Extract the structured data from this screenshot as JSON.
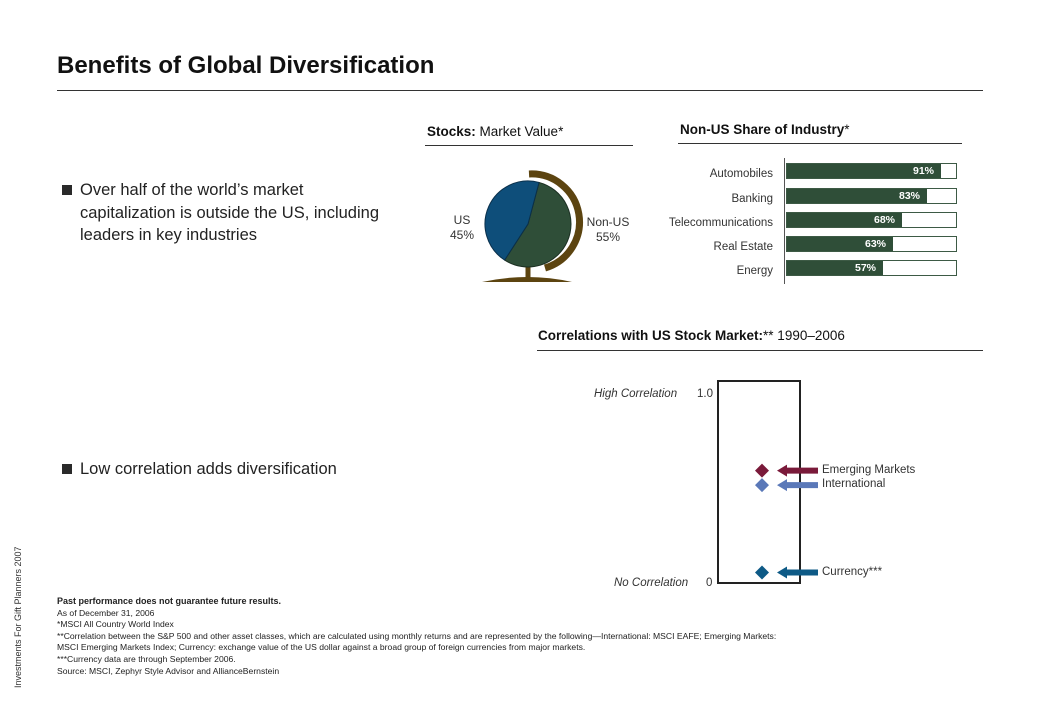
{
  "page": {
    "title": "Benefits of Global Diversification",
    "side_text": "Investments For Gift Planners 2007"
  },
  "bullets": [
    {
      "text": "Over half of the world’s market capitalization is outside the US, including leaders in key industries"
    },
    {
      "text": "Low correlation adds diversification"
    }
  ],
  "market_value": {
    "title_bold": "Stocks:",
    "title_rest": " Market Value*",
    "us_label": "US",
    "us_value": "45%",
    "nonus_label": "Non-US",
    "nonus_value": "55%",
    "colors": {
      "us": "#0e4e7a",
      "nonus": "#2f4e38",
      "stand": "#5c4410"
    }
  },
  "industry_share": {
    "title_bold": "Non-US Share of Industry",
    "title_rest": "*",
    "items": [
      {
        "label": "Automobiles",
        "value": 91,
        "value_label": "91%"
      },
      {
        "label": "Banking",
        "value": 83,
        "value_label": "83%"
      },
      {
        "label": "Telecommunications",
        "value": 68,
        "value_label": "68%"
      },
      {
        "label": "Real Estate",
        "value": 63,
        "value_label": "63%"
      },
      {
        "label": "Energy",
        "value": 57,
        "value_label": "57%"
      }
    ]
  },
  "correlations": {
    "title_bold": "Correlations with US Stock Market:",
    "title_rest": "** 1990–2006",
    "high_label": "High Correlation",
    "high_value": "1.0",
    "low_label": "No Correlation",
    "low_value": "0",
    "markers": [
      {
        "name": "Emerging Markets",
        "value": 0.59,
        "color": "#7a1a3a"
      },
      {
        "name": "International",
        "value": 0.51,
        "color": "#5a78b8"
      },
      {
        "name": "Currency***",
        "value": 0.03,
        "color": "#0e5a86"
      }
    ]
  },
  "footnotes": {
    "line1": "Past performance does not guarantee future results.",
    "line2": "As of December 31, 2006",
    "line3": "*MSCI All Country World Index",
    "line4": "**Correlation between the S&P 500 and other asset classes, which are calculated using monthly returns and are represented by the following—International: MSCI EAFE; Emerging Markets:",
    "line5": "MSCI Emerging Markets Index; Currency: exchange value of the US dollar against a broad group of foreign currencies from major markets.",
    "line6": "***Currency data are through September 2006.",
    "line7": "Source: MSCI, Zephyr Style Advisor and AllianceBernstein"
  }
}
